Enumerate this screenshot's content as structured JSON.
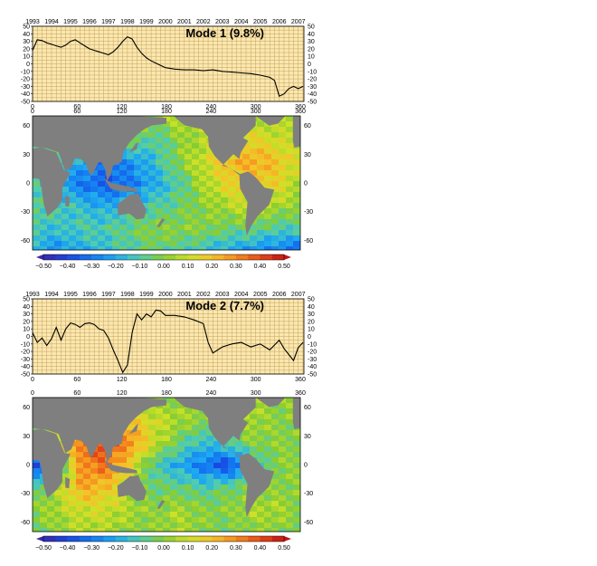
{
  "chart_data": [
    {
      "type": "line",
      "title": "Mode 1 (9.8%)",
      "x": [
        1993.0,
        1993.25,
        1993.5,
        1993.75,
        1994.0,
        1994.25,
        1994.5,
        1994.75,
        1995.0,
        1995.25,
        1995.5,
        1995.75,
        1996.0,
        1996.25,
        1996.5,
        1996.75,
        1997.0,
        1997.25,
        1997.5,
        1997.75,
        1998.0,
        1998.25,
        1998.5,
        1998.75,
        1999.0,
        1999.25,
        1999.5,
        1999.75,
        2000.0,
        2000.5,
        2001.0,
        2001.5,
        2002.0,
        2002.5,
        2003.0,
        2003.5,
        2004.0,
        2004.5,
        2005.0,
        2005.5,
        2005.75,
        2006.0,
        2006.25,
        2006.5,
        2006.75,
        2007.0,
        2007.25
      ],
      "values": [
        18,
        32,
        31,
        28,
        26,
        24,
        22,
        25,
        30,
        32,
        28,
        24,
        20,
        18,
        16,
        14,
        12,
        16,
        22,
        30,
        36,
        33,
        22,
        14,
        8,
        4,
        1,
        -2,
        -5,
        -7,
        -8,
        -8,
        -9,
        -8,
        -10,
        -11,
        -12,
        -13,
        -15,
        -18,
        -22,
        -43,
        -40,
        -33,
        -30,
        -33,
        -30
      ],
      "xlim": [
        1993,
        2007.3
      ],
      "ylim": [
        -50,
        50
      ],
      "yticks": [
        -50,
        -40,
        -30,
        -20,
        -10,
        0,
        10,
        20,
        30,
        40,
        50
      ],
      "top_ticks": [
        "1993",
        "1994",
        "1995",
        "1996",
        "1997",
        "1998",
        "1999",
        "2000",
        "2001",
        "2002",
        "2003",
        "2004",
        "2005",
        "2006",
        "2007"
      ],
      "bottom_ticks": [
        "0",
        "60",
        "120",
        "180",
        "240",
        "300",
        "360"
      ],
      "colors": {
        "background": "#fbe8b0",
        "grid": "#c6a25c",
        "line": "#000000"
      }
    },
    {
      "type": "line",
      "title": "Mode 2 (7.7%)",
      "x": [
        1993.0,
        1993.25,
        1993.5,
        1993.75,
        1994.0,
        1994.25,
        1994.5,
        1994.75,
        1995.0,
        1995.25,
        1995.5,
        1995.75,
        1996.0,
        1996.25,
        1996.5,
        1996.75,
        1997.0,
        1997.25,
        1997.5,
        1997.75,
        1998.0,
        1998.25,
        1998.5,
        1998.75,
        1999.0,
        1999.25,
        1999.5,
        1999.75,
        2000.0,
        2000.5,
        2001.0,
        2001.5,
        2002.0,
        2002.25,
        2002.5,
        2003.0,
        2003.5,
        2004.0,
        2004.5,
        2005.0,
        2005.5,
        2006.0,
        2006.25,
        2006.5,
        2006.75,
        2007.0,
        2007.25
      ],
      "values": [
        5,
        -8,
        -2,
        -12,
        -3,
        12,
        -5,
        10,
        18,
        16,
        12,
        17,
        18,
        16,
        10,
        8,
        -2,
        -18,
        -32,
        -48,
        -38,
        5,
        30,
        22,
        30,
        26,
        35,
        34,
        28,
        28,
        26,
        22,
        17,
        -8,
        -22,
        -14,
        -10,
        -8,
        -14,
        -10,
        -18,
        -5,
        -16,
        -24,
        -32,
        -15,
        -8
      ],
      "xlim": [
        1993,
        2007.3
      ],
      "ylim": [
        -50,
        50
      ],
      "yticks": [
        -50,
        -40,
        -30,
        -20,
        -10,
        0,
        10,
        20,
        30,
        40,
        50
      ],
      "top_ticks": [
        "1993",
        "1994",
        "1995",
        "1996",
        "1997",
        "1998",
        "1999",
        "2000",
        "2001",
        "2002",
        "2003",
        "2004",
        "2005",
        "2006",
        "2007"
      ],
      "bottom_ticks": [
        "0",
        "60",
        "120",
        "180",
        "240",
        "300",
        "360"
      ],
      "colors": {
        "background": "#fbe8b0",
        "grid": "#c6a25c",
        "line": "#000000"
      }
    },
    {
      "type": "heatmap",
      "title": "",
      "xticks": [
        "0",
        "60",
        "120",
        "180",
        "240",
        "300",
        "360"
      ],
      "yticks": [
        "60",
        "30",
        "0",
        "-30",
        "-60"
      ],
      "grid": [
        [
          0.0,
          0.05,
          0.05,
          0.1,
          0.1,
          0.0,
          0.1,
          0.1,
          0.05,
          0.0,
          0.05,
          0.1
        ],
        [
          -0.05,
          0.0,
          0.05,
          0.05,
          0.0,
          -0.1,
          0.0,
          0.05,
          0.1,
          0.15,
          0.1,
          0.05
        ],
        [
          0.0,
          -0.1,
          -0.2,
          -0.3,
          -0.25,
          -0.15,
          0.0,
          0.1,
          0.2,
          0.25,
          0.2,
          0.1
        ],
        [
          -0.1,
          -0.2,
          -0.3,
          -0.35,
          -0.3,
          -0.2,
          -0.1,
          0.05,
          0.15,
          0.2,
          0.15,
          0.05
        ],
        [
          -0.05,
          -0.1,
          -0.15,
          -0.2,
          -0.15,
          -0.1,
          -0.05,
          0.0,
          0.05,
          0.1,
          0.05,
          0.0
        ],
        [
          -0.1,
          -0.15,
          -0.1,
          -0.1,
          -0.05,
          0.0,
          0.0,
          0.0,
          -0.05,
          -0.05,
          -0.1,
          -0.1
        ],
        [
          -0.2,
          -0.25,
          -0.2,
          -0.15,
          -0.1,
          -0.05,
          -0.1,
          -0.15,
          -0.2,
          -0.25,
          -0.3,
          -0.35
        ]
      ],
      "colorbar": {
        "min": -0.5,
        "max": 0.5,
        "labels": [
          "−0.50",
          "−0.40",
          "−0.30",
          "−0.20",
          "−0.10",
          "0.00",
          "0.10",
          "0.20",
          "0.30",
          "0.40",
          "0.50"
        ]
      }
    },
    {
      "type": "heatmap",
      "title": "",
      "xticks": [
        "0",
        "60",
        "120",
        "180",
        "240",
        "300",
        "360"
      ],
      "yticks": [
        "60",
        "30",
        "0",
        "-30",
        "-60"
      ],
      "grid": [
        [
          0.0,
          0.05,
          0.1,
          0.1,
          0.05,
          0.0,
          0.0,
          0.05,
          0.1,
          0.05,
          0.0,
          0.05
        ],
        [
          0.0,
          0.05,
          0.1,
          0.15,
          0.2,
          0.1,
          0.05,
          0.0,
          0.05,
          0.05,
          0.0,
          0.0
        ],
        [
          -0.1,
          0.1,
          0.35,
          0.4,
          0.3,
          0.1,
          -0.05,
          -0.15,
          -0.1,
          0.0,
          0.0,
          0.0
        ],
        [
          -0.4,
          -0.2,
          0.3,
          0.35,
          0.15,
          -0.1,
          -0.2,
          -0.3,
          -0.4,
          -0.2,
          0.0,
          0.0
        ],
        [
          -0.1,
          0.05,
          0.25,
          0.2,
          0.05,
          -0.05,
          -0.05,
          -0.1,
          -0.05,
          0.0,
          0.0,
          0.0
        ],
        [
          0.0,
          0.05,
          0.1,
          0.1,
          0.05,
          0.0,
          0.05,
          0.0,
          0.0,
          0.05,
          0.05,
          0.0
        ],
        [
          -0.05,
          0.0,
          0.05,
          0.05,
          0.0,
          0.0,
          0.05,
          0.0,
          -0.05,
          0.0,
          0.0,
          -0.05
        ]
      ],
      "colorbar": {
        "min": -0.5,
        "max": 0.5,
        "labels": [
          "−0.50",
          "−0.40",
          "−0.30",
          "−0.20",
          "−0.10",
          "0.00",
          "0.10",
          "0.20",
          "0.30",
          "0.40",
          "0.50"
        ]
      }
    }
  ]
}
